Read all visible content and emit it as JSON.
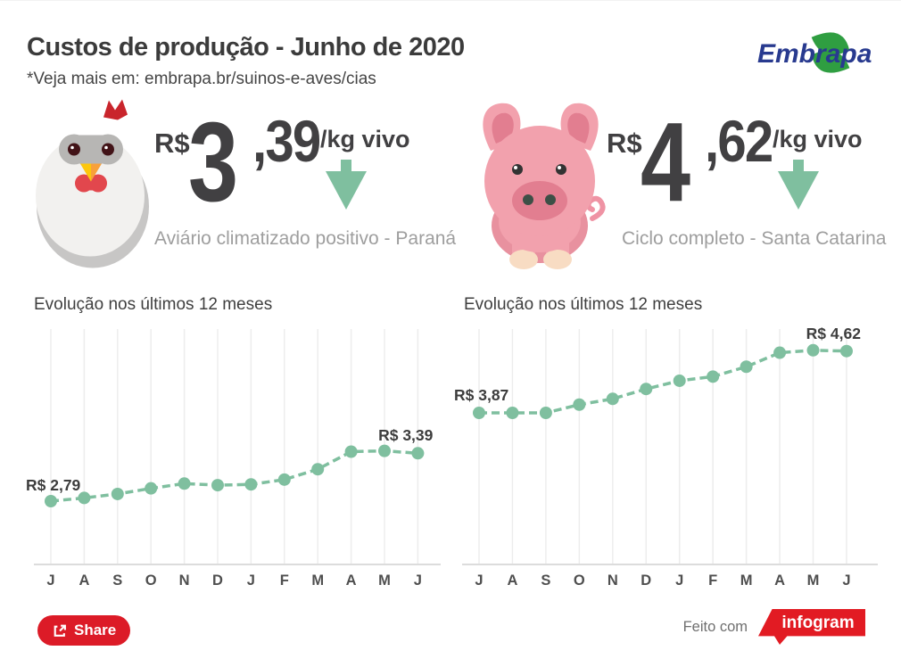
{
  "header": {
    "title": "Custos de produção - Junho de 2020",
    "subtitle": "*Veja mais em: embrapa.br/suinos-e-aves/cias",
    "brand": "Embrapa"
  },
  "prices": {
    "chicken": {
      "currency": "R$",
      "integer": "3",
      "decimal": ",39",
      "unit": "/kg vivo",
      "trend": "down",
      "caption": "Aviário climatizado positivo - Paraná"
    },
    "pig": {
      "currency": "R$",
      "integer": "4",
      "decimal": ",62",
      "unit": "/kg vivo",
      "trend": "down",
      "caption": "Ciclo completo - Santa Catarina"
    }
  },
  "chart_data": [
    {
      "type": "line",
      "title": "Evolução nos últimos 12 meses",
      "categories": [
        "J",
        "A",
        "S",
        "O",
        "N",
        "D",
        "J",
        "F",
        "M",
        "A",
        "M",
        "J"
      ],
      "series": [
        {
          "name": "Aviário climatizado positivo - Paraná (R$/kg vivo)",
          "values": [
            2.79,
            2.83,
            2.88,
            2.95,
            3.01,
            2.99,
            3.0,
            3.06,
            3.19,
            3.41,
            3.42,
            3.39
          ]
        }
      ],
      "first_point_label": "R$ 2,79",
      "last_point_label": "R$ 3,39",
      "ylim": [
        2.6,
        3.7
      ],
      "grid": true,
      "legend": false,
      "line_color": "#7FBF9F",
      "line_style": "dashed"
    },
    {
      "type": "line",
      "title": "Evolução nos últimos 12 meses",
      "categories": [
        "J",
        "A",
        "S",
        "O",
        "N",
        "D",
        "J",
        "F",
        "M",
        "A",
        "M",
        "J"
      ],
      "series": [
        {
          "name": "Ciclo completo - Santa Catarina (R$/kg vivo)",
          "values": [
            3.87,
            3.87,
            3.87,
            3.97,
            4.04,
            4.16,
            4.26,
            4.31,
            4.43,
            4.6,
            4.63,
            4.62
          ]
        }
      ],
      "first_point_label": "R$ 3,87",
      "last_point_label": "R$ 4,62",
      "ylim": [
        3.4,
        4.9
      ],
      "grid": true,
      "legend": false,
      "line_color": "#7FBF9F",
      "line_style": "dashed"
    }
  ],
  "footer": {
    "share_label": "Share",
    "made_with": "Feito com",
    "builder": "infogram"
  },
  "colors": {
    "accent_green": "#7FBF9F",
    "alert_red": "#E11B22",
    "text_dark": "#3D3D3D",
    "text_gray": "#9E9E9E",
    "embrapa_blue": "#283A8F",
    "embrapa_green": "#2F9E41"
  }
}
